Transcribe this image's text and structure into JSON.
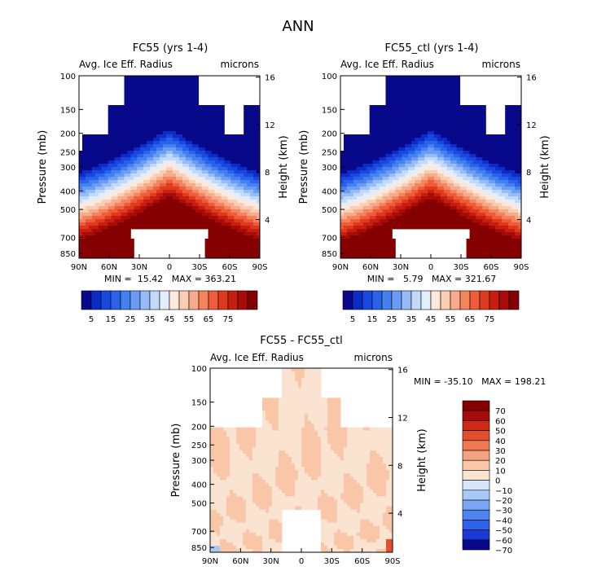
{
  "figure": {
    "title": "ANN"
  },
  "colors": {
    "blues": [
      "#08088a",
      "#0c2cc8",
      "#1848e0",
      "#2a62ea",
      "#4480f0",
      "#6a9cf4",
      "#95bcf8",
      "#c2daf9",
      "#e2eefc"
    ],
    "reds": [
      "#fde9dc",
      "#fbcdb2",
      "#f8ab8a",
      "#f4845c",
      "#ee5c3b",
      "#e03a1e",
      "#c81e10",
      "#a80c08",
      "#850000"
    ],
    "diff": [
      "#08088a",
      "#1a3ad8",
      "#2e62ea",
      "#4e84f0",
      "#7aa6f4",
      "#a8c8f8",
      "#d6e6fb",
      "#fbe3d2",
      "#f9c7a8",
      "#f5a27e",
      "#ee7a52",
      "#e44e2e",
      "#cf2a14",
      "#a80c08",
      "#850000"
    ],
    "missing": "#ffffff"
  },
  "chart_data": [
    {
      "type": "heatmap",
      "title": "FC55 (yrs 1-4)",
      "left_label": "Avg. Ice Eff. Radius",
      "right_label": "microns",
      "ylabel": "Pressure (mb)",
      "ylabel_right": "Height (km)",
      "x_ticks": [
        "90N",
        "60N",
        "30N",
        "0",
        "30S",
        "60S",
        "90S"
      ],
      "x_values": [
        90,
        60,
        30,
        0,
        -30,
        -60,
        -90
      ],
      "y_ticks": [
        "100",
        "150",
        "200",
        "250",
        "300",
        "400",
        "500",
        "700",
        "850"
      ],
      "y_values": [
        100,
        150,
        200,
        250,
        300,
        400,
        500,
        700,
        850
      ],
      "y_right_ticks": [
        "16",
        "12",
        "8",
        "4"
      ],
      "y_right_values": [
        16,
        12,
        8,
        4
      ],
      "ylim": [
        100,
        900
      ],
      "min_text": "MIN =  15.42   MAX = 363.21",
      "min": 15.42,
      "max": 363.21,
      "top_shift": 0
    },
    {
      "type": "heatmap",
      "title": "FC55_ctl (yrs 1-4)",
      "left_label": "Avg. Ice Eff. Radius",
      "right_label": "microns",
      "ylabel": "Pressure (mb)",
      "ylabel_right": "Height (km)",
      "x_ticks": [
        "90N",
        "60N",
        "30N",
        "0",
        "30S",
        "60S",
        "90S"
      ],
      "x_values": [
        90,
        60,
        30,
        0,
        -30,
        -60,
        -90
      ],
      "y_ticks": [
        "100",
        "150",
        "200",
        "250",
        "300",
        "400",
        "500",
        "700",
        "850"
      ],
      "y_values": [
        100,
        150,
        200,
        250,
        300,
        400,
        500,
        700,
        850
      ],
      "y_right_ticks": [
        "16",
        "12",
        "8",
        "4"
      ],
      "y_right_values": [
        16,
        12,
        8,
        4
      ],
      "ylim": [
        100,
        900
      ],
      "min_text": "MIN =   5.79   MAX = 321.67",
      "min": 5.79,
      "max": 321.67,
      "top_shift": 0
    },
    {
      "type": "heatmap",
      "title": "FC55 - FC55_ctl",
      "left_label": "Avg. Ice Eff. Radius",
      "right_label": "microns",
      "ylabel": "Pressure (mb)",
      "ylabel_right": "Height (km)",
      "x_ticks": [
        "90N",
        "60N",
        "30N",
        "0",
        "30S",
        "60S",
        "90S"
      ],
      "x_values": [
        90,
        60,
        30,
        0,
        -30,
        -60,
        -90
      ],
      "y_ticks": [
        "100",
        "150",
        "200",
        "250",
        "300",
        "400",
        "500",
        "700",
        "850"
      ],
      "y_values": [
        100,
        150,
        200,
        250,
        300,
        400,
        500,
        700,
        850
      ],
      "y_right_ticks": [
        "16",
        "12",
        "8",
        "4"
      ],
      "y_right_values": [
        16,
        12,
        8,
        4
      ],
      "ylim": [
        100,
        900
      ],
      "min_text": "MIN = -35.10   MAX = 198.21",
      "min": -35.1,
      "max": 198.21
    }
  ],
  "colorbar_fields": {
    "labels": [
      "5",
      "15",
      "25",
      "35",
      "45",
      "55",
      "65",
      "75"
    ],
    "levels": [
      5,
      10,
      15,
      20,
      25,
      30,
      35,
      40,
      45,
      50,
      55,
      60,
      65,
      70,
      75
    ]
  },
  "colorbar_diff": {
    "labels": [
      "70",
      "60",
      "50",
      "40",
      "30",
      "20",
      "10",
      "0",
      "−10",
      "−20",
      "−30",
      "−40",
      "−50",
      "−60",
      "−70"
    ],
    "levels": [
      70,
      60,
      50,
      40,
      30,
      20,
      10,
      0,
      -10,
      -20,
      -30,
      -40,
      -50,
      -60,
      -70
    ]
  }
}
